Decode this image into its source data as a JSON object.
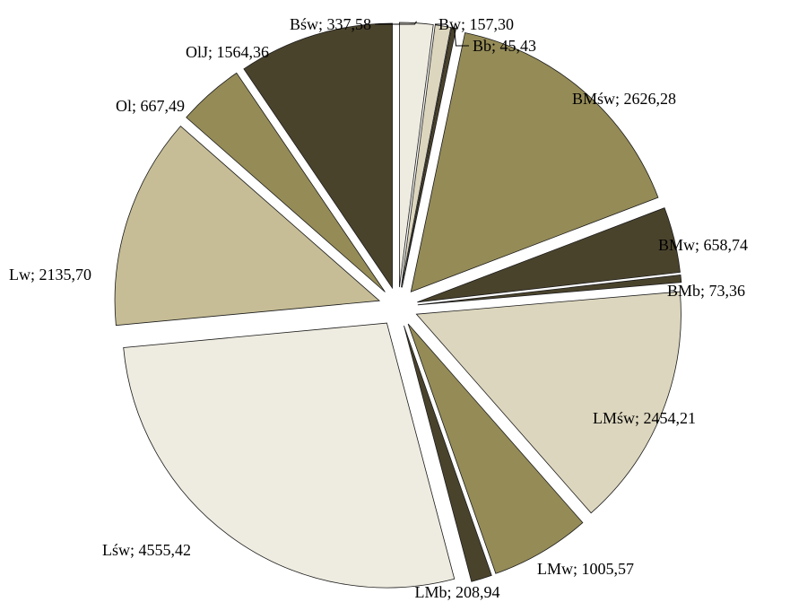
{
  "chart_data": {
    "type": "pie",
    "exploded": true,
    "start": "top",
    "direction": "clockwise",
    "slices": [
      {
        "label": "Bśw; 337,58",
        "value": 337.58,
        "color": "#eeebe0"
      },
      {
        "label": "Bw; 157,30",
        "value": 157.3,
        "color": "#dcd6be"
      },
      {
        "label": "Bb; 45,43",
        "value": 45.43,
        "color": "#4a432c"
      },
      {
        "label": "BMśw; 2626,28",
        "value": 2626.28,
        "color": "#958b57"
      },
      {
        "label": "BMw; 658,74",
        "value": 658.74,
        "color": "#4a432c"
      },
      {
        "label": "BMb; 73,36",
        "value": 73.36,
        "color": "#4a432c"
      },
      {
        "label": "LMśw; 2454,21",
        "value": 2454.21,
        "color": "#dcd6be"
      },
      {
        "label": "LMw; 1005,57",
        "value": 1005.57,
        "color": "#958b57"
      },
      {
        "label": "LMb; 208,94",
        "value": 208.94,
        "color": "#4a432c"
      },
      {
        "label": "Lśw; 4555,42",
        "value": 4555.42,
        "color": "#eeebe0"
      },
      {
        "label": "Lw; 2135,70",
        "value": 2135.7,
        "color": "#c6bd96"
      },
      {
        "label": "Ol; 667,49",
        "value": 667.49,
        "color": "#958b57"
      },
      {
        "label": "OlJ; 1564,36",
        "value": 1564.36,
        "color": "#4a432c"
      }
    ]
  }
}
